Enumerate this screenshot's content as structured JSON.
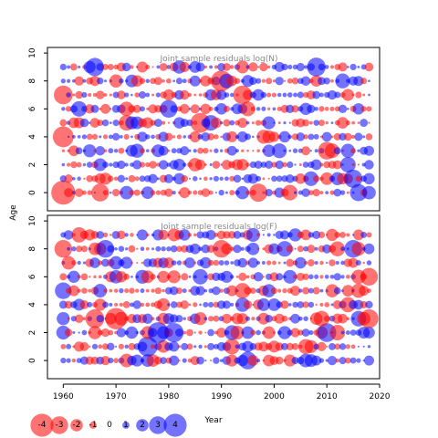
{
  "chart_data": {
    "type": "scatter",
    "subtype": "bubble-residuals",
    "xlabel": "Year",
    "ylabel": "Age",
    "xlim": [
      1957,
      2020
    ],
    "x_ticks": [
      1960,
      1970,
      1980,
      1990,
      2000,
      2010,
      2020
    ],
    "y_ticks": [
      0,
      2,
      4,
      6,
      8,
      10
    ],
    "ylim": [
      -1.3,
      10.4
    ],
    "years": [
      1960,
      2018
    ],
    "ages": [
      0,
      9
    ],
    "colors": {
      "positive": "#0000ff",
      "negative": "#ff0000"
    },
    "opacity": 0.55,
    "panels": [
      {
        "title": "Joint sample residuals log(N)",
        "seed": 11,
        "marked": [
          {
            "year": 1960,
            "age": 0,
            "value": -4.2
          },
          {
            "year": 1960,
            "age": 4,
            "value": -3.6
          },
          {
            "year": 1960,
            "age": 7,
            "value": -3.2
          },
          {
            "year": 1966,
            "age": 9,
            "value": 3.1
          },
          {
            "year": 1967,
            "age": 0,
            "value": -3.0
          },
          {
            "year": 1980,
            "age": 6,
            "value": 3.0
          },
          {
            "year": 1986,
            "age": 5,
            "value": -3.4
          },
          {
            "year": 1990,
            "age": 8,
            "value": -3.6
          },
          {
            "year": 1994,
            "age": 7,
            "value": -3.2
          },
          {
            "year": 1997,
            "age": 0,
            "value": -3.1
          },
          {
            "year": 2008,
            "age": 9,
            "value": 3.2
          },
          {
            "year": 2010,
            "age": 3,
            "value": -3.0
          },
          {
            "year": 2015,
            "age": 1,
            "value": 3.1
          },
          {
            "year": 2016,
            "age": 0,
            "value": 2.9
          }
        ]
      },
      {
        "title": "Joint sample residuals log(F)",
        "seed": 29,
        "marked": [
          {
            "year": 1960,
            "age": 8,
            "value": -3.0
          },
          {
            "year": 1960,
            "age": 5,
            "value": 2.8
          },
          {
            "year": 1970,
            "age": 3,
            "value": -3.7
          },
          {
            "year": 1966,
            "age": 3,
            "value": -3.2
          },
          {
            "year": 1968,
            "age": 8,
            "value": 3.0
          },
          {
            "year": 1976,
            "age": 1,
            "value": 3.4
          },
          {
            "year": 1978,
            "age": 2,
            "value": 3.6
          },
          {
            "year": 1981,
            "age": 2,
            "value": 3.3
          },
          {
            "year": 1990,
            "age": 8,
            "value": -3.0
          },
          {
            "year": 1995,
            "age": 0,
            "value": 3.0
          },
          {
            "year": 2010,
            "age": 2,
            "value": 3.2
          },
          {
            "year": 2015,
            "age": 8,
            "value": 3.0
          },
          {
            "year": 2018,
            "age": 3,
            "value": -3.2
          },
          {
            "year": 2018,
            "age": 6,
            "value": -3.0
          }
        ]
      }
    ],
    "legend": [
      {
        "label": "-4",
        "value": -4
      },
      {
        "label": "-3",
        "value": -3
      },
      {
        "label": "-2",
        "value": -2
      },
      {
        "label": "-1",
        "value": -1
      },
      {
        "label": "0",
        "value": 0
      },
      {
        "label": "1",
        "value": 1
      },
      {
        "label": "2",
        "value": 2
      },
      {
        "label": "3",
        "value": 3
      },
      {
        "label": "4",
        "value": 4
      }
    ]
  }
}
